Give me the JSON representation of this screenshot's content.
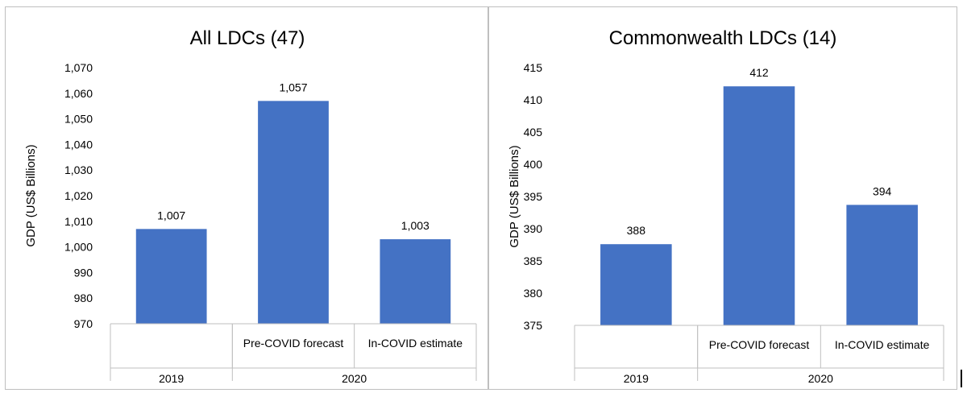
{
  "colors": {
    "bar": "#4472c4",
    "axis": "#bfbfbf",
    "text": "#000000"
  },
  "chart_data": [
    {
      "type": "bar",
      "title": "All LDCs (47)",
      "ylabel": "GDP (US$ Billions)",
      "xlabel": "",
      "ylim": [
        970,
        1070
      ],
      "yticks": [
        970,
        980,
        990,
        1000,
        1010,
        1020,
        1030,
        1040,
        1050,
        1060,
        1070
      ],
      "ytick_labels": [
        "970",
        "980",
        "990",
        "1,000",
        "1,010",
        "1,020",
        "1,030",
        "1,040",
        "1,050",
        "1,060",
        "1,070"
      ],
      "categories": [
        "",
        "Pre-COVID forecast",
        "In-COVID estimate"
      ],
      "groups": [
        {
          "label": "2019",
          "span": 1
        },
        {
          "label": "2020",
          "span": 2
        }
      ],
      "values": [
        1007,
        1057,
        1003
      ],
      "value_labels": [
        "1,007",
        "1,057",
        "1,003"
      ],
      "grid": false,
      "legend": "none"
    },
    {
      "type": "bar",
      "title": "Commonwealth LDCs (14)",
      "ylabel": "GDP (US$ Billions)",
      "xlabel": "",
      "ylim": [
        375,
        415
      ],
      "yticks": [
        375,
        380,
        385,
        390,
        395,
        400,
        405,
        410,
        415
      ],
      "ytick_labels": [
        "375",
        "380",
        "385",
        "390",
        "395",
        "400",
        "405",
        "410",
        "415"
      ],
      "categories": [
        "",
        "Pre-COVID forecast",
        "In-COVID estimate"
      ],
      "groups": [
        {
          "label": "2019",
          "span": 1
        },
        {
          "label": "2020",
          "span": 2
        }
      ],
      "values": [
        387.6,
        412.1,
        393.7
      ],
      "value_labels": [
        "388",
        "412",
        "394"
      ],
      "grid": false,
      "legend": "none"
    }
  ]
}
